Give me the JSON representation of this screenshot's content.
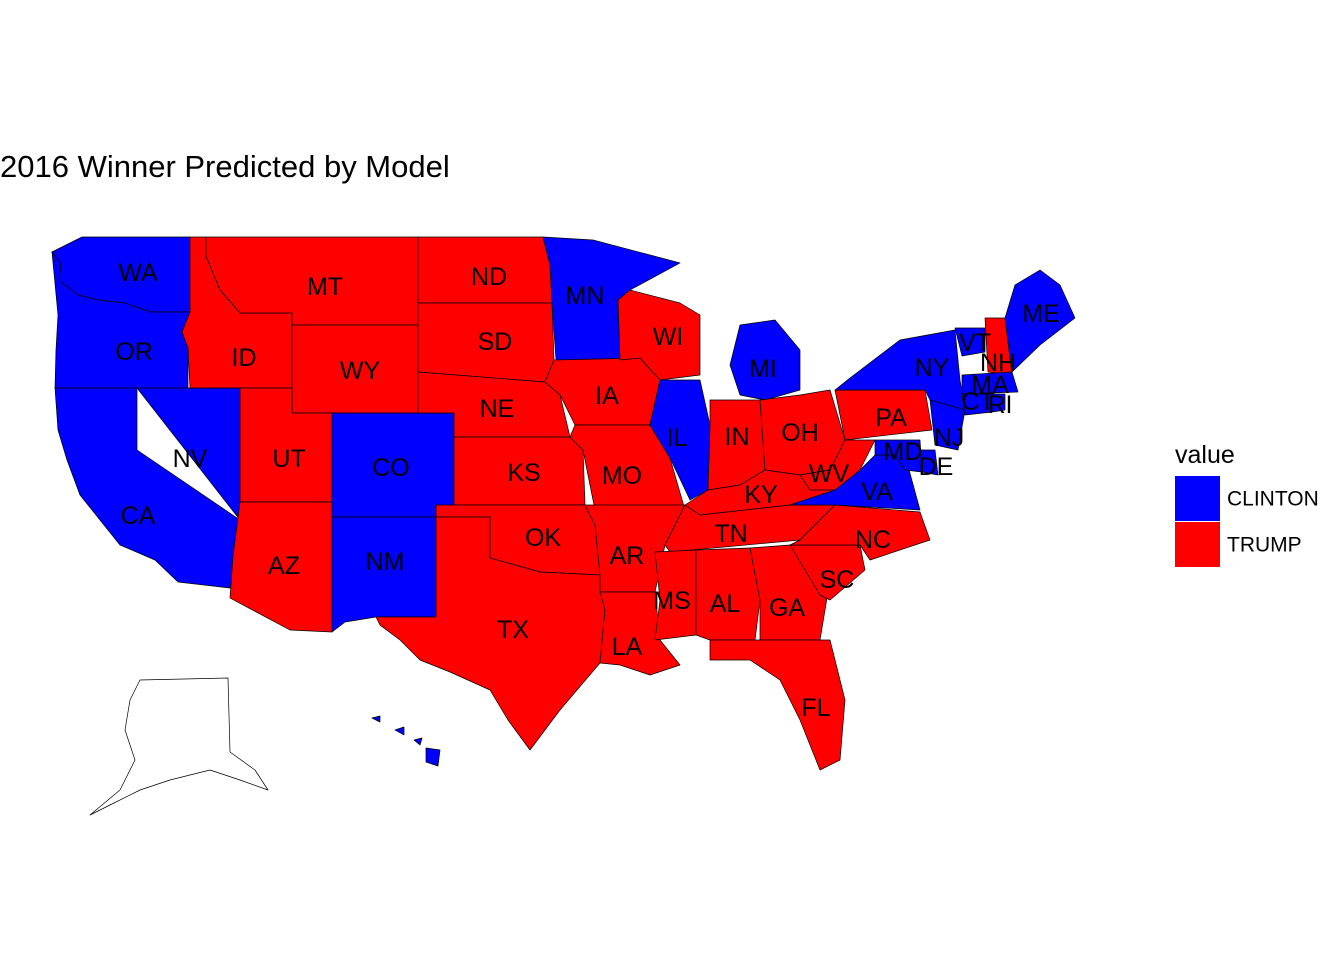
{
  "title": "2016 Winner Predicted by Model",
  "colors": {
    "CLINTON": "#0000ff",
    "TRUMP": "#ff0000"
  },
  "legend": {
    "title": "value",
    "items": [
      {
        "label": "CLINTON",
        "value": "CLINTON"
      },
      {
        "label": "TRUMP",
        "value": "TRUMP"
      }
    ]
  },
  "states": [
    {
      "abbr": "WA",
      "winner": "CLINTON"
    },
    {
      "abbr": "OR",
      "winner": "CLINTON"
    },
    {
      "abbr": "CA",
      "winner": "CLINTON"
    },
    {
      "abbr": "NV",
      "winner": "CLINTON"
    },
    {
      "abbr": "ID",
      "winner": "TRUMP"
    },
    {
      "abbr": "MT",
      "winner": "TRUMP"
    },
    {
      "abbr": "WY",
      "winner": "TRUMP"
    },
    {
      "abbr": "UT",
      "winner": "TRUMP"
    },
    {
      "abbr": "AZ",
      "winner": "TRUMP"
    },
    {
      "abbr": "CO",
      "winner": "CLINTON"
    },
    {
      "abbr": "NM",
      "winner": "CLINTON"
    },
    {
      "abbr": "ND",
      "winner": "TRUMP"
    },
    {
      "abbr": "SD",
      "winner": "TRUMP"
    },
    {
      "abbr": "NE",
      "winner": "TRUMP"
    },
    {
      "abbr": "KS",
      "winner": "TRUMP"
    },
    {
      "abbr": "OK",
      "winner": "TRUMP"
    },
    {
      "abbr": "TX",
      "winner": "TRUMP"
    },
    {
      "abbr": "MN",
      "winner": "CLINTON"
    },
    {
      "abbr": "IA",
      "winner": "TRUMP"
    },
    {
      "abbr": "MO",
      "winner": "TRUMP"
    },
    {
      "abbr": "AR",
      "winner": "TRUMP"
    },
    {
      "abbr": "LA",
      "winner": "TRUMP"
    },
    {
      "abbr": "WI",
      "winner": "TRUMP"
    },
    {
      "abbr": "IL",
      "winner": "CLINTON"
    },
    {
      "abbr": "MI",
      "winner": "CLINTON"
    },
    {
      "abbr": "IN",
      "winner": "TRUMP"
    },
    {
      "abbr": "OH",
      "winner": "TRUMP"
    },
    {
      "abbr": "KY",
      "winner": "TRUMP"
    },
    {
      "abbr": "TN",
      "winner": "TRUMP"
    },
    {
      "abbr": "MS",
      "winner": "TRUMP"
    },
    {
      "abbr": "AL",
      "winner": "TRUMP"
    },
    {
      "abbr": "GA",
      "winner": "TRUMP"
    },
    {
      "abbr": "FL",
      "winner": "TRUMP"
    },
    {
      "abbr": "SC",
      "winner": "TRUMP"
    },
    {
      "abbr": "NC",
      "winner": "TRUMP"
    },
    {
      "abbr": "VA",
      "winner": "CLINTON"
    },
    {
      "abbr": "WV",
      "winner": "TRUMP"
    },
    {
      "abbr": "PA",
      "winner": "TRUMP"
    },
    {
      "abbr": "NY",
      "winner": "CLINTON"
    },
    {
      "abbr": "VT",
      "winner": "CLINTON"
    },
    {
      "abbr": "NH",
      "winner": "TRUMP"
    },
    {
      "abbr": "ME",
      "winner": "CLINTON"
    },
    {
      "abbr": "MA",
      "winner": "CLINTON"
    },
    {
      "abbr": "CT",
      "winner": "CLINTON"
    },
    {
      "abbr": "RI",
      "winner": "CLINTON"
    },
    {
      "abbr": "NJ",
      "winner": "CLINTON"
    },
    {
      "abbr": "DE",
      "winner": "CLINTON"
    },
    {
      "abbr": "MD",
      "winner": "CLINTON"
    },
    {
      "abbr": "AK",
      "winner": ""
    },
    {
      "abbr": "HI",
      "winner": "CLINTON"
    }
  ]
}
